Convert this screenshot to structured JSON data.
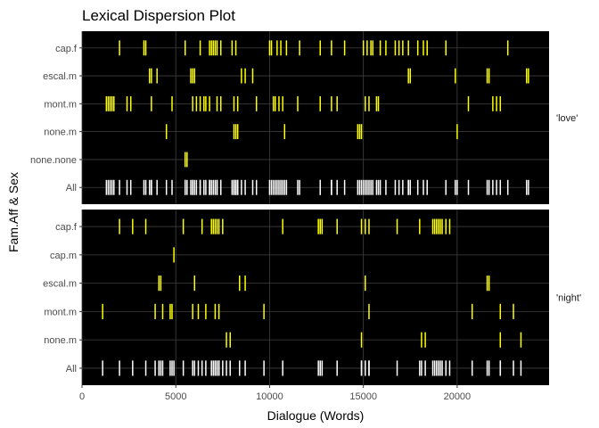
{
  "chart_data": {
    "type": "lexical-dispersion",
    "title": "Lexical Dispersion Plot",
    "xlabel": "Dialogue (Words)",
    "ylabel": "Fam.Aff & Sex",
    "xlim": [
      0,
      24900
    ],
    "xticks": [
      0,
      5000,
      10000,
      15000,
      20000
    ],
    "xtick_labels": [
      "0",
      "5000",
      "10000",
      "15000",
      "20000"
    ],
    "grid": true,
    "background": "#000000",
    "colors": {
      "word": "#ffff00",
      "all": "#ffffff",
      "grid": "#404040"
    },
    "panels": [
      {
        "strip_label": "'love'",
        "rows": [
          {
            "name": "cap.f",
            "positions": [
              2000,
              3300,
              3400,
              5500,
              6300,
              6800,
              6900,
              7000,
              7100,
              7200,
              7400,
              8000,
              8200,
              10000,
              10100,
              10400,
              10600,
              10900,
              11600,
              12700,
              13300,
              14000,
              15000,
              15200,
              15400,
              15500,
              15900,
              16200,
              16700,
              16900,
              17100,
              17400,
              17900,
              18200,
              18400,
              19400,
              22700
            ]
          },
          {
            "name": "escal.m",
            "positions": [
              3600,
              3700,
              4000,
              5800,
              5900,
              6000,
              8500,
              8700,
              9100,
              17400,
              17500,
              19900,
              21600,
              21700,
              23700,
              23800
            ]
          },
          {
            "name": "mont.m",
            "positions": [
              1300,
              1400,
              1500,
              1600,
              1700,
              2400,
              2600,
              3700,
              4800,
              5900,
              6100,
              6300,
              6500,
              6600,
              6800,
              7200,
              7400,
              8100,
              8300,
              9300,
              10200,
              10300,
              10500,
              10700,
              11500,
              12700,
              13300,
              13600,
              15100,
              15300,
              15700,
              15800,
              20600,
              21900,
              22100,
              22300
            ]
          },
          {
            "name": "none.m",
            "positions": [
              4500,
              8100,
              8200,
              8300,
              10800,
              14700,
              14800,
              14900,
              20000
            ]
          },
          {
            "name": "none.none",
            "positions": [
              5500,
              5600
            ]
          }
        ]
      },
      {
        "strip_label": "'night'",
        "rows": [
          {
            "name": "cap.f",
            "positions": [
              2000,
              2700,
              3400,
              5400,
              6400,
              6900,
              7000,
              7100,
              7200,
              7300,
              7500,
              10700,
              12600,
              12700,
              12800,
              13600,
              14900,
              15100,
              15300,
              16800,
              18000,
              18700,
              18800,
              18900,
              19000,
              19100,
              19200,
              19400,
              19600
            ]
          },
          {
            "name": "cap.m",
            "positions": [
              4900
            ]
          },
          {
            "name": "escal.m",
            "positions": [
              4100,
              4200,
              6000,
              8400,
              8700,
              15100,
              21600,
              21700
            ]
          },
          {
            "name": "mont.m",
            "positions": [
              1100,
              3900,
              4300,
              4700,
              4800,
              5900,
              6200,
              6600,
              7100,
              7300,
              9700,
              15300,
              20800,
              22300,
              23000
            ]
          },
          {
            "name": "none.m",
            "positions": [
              7700,
              7900,
              14900,
              18100,
              18300,
              22300,
              23400
            ]
          }
        ]
      }
    ]
  }
}
